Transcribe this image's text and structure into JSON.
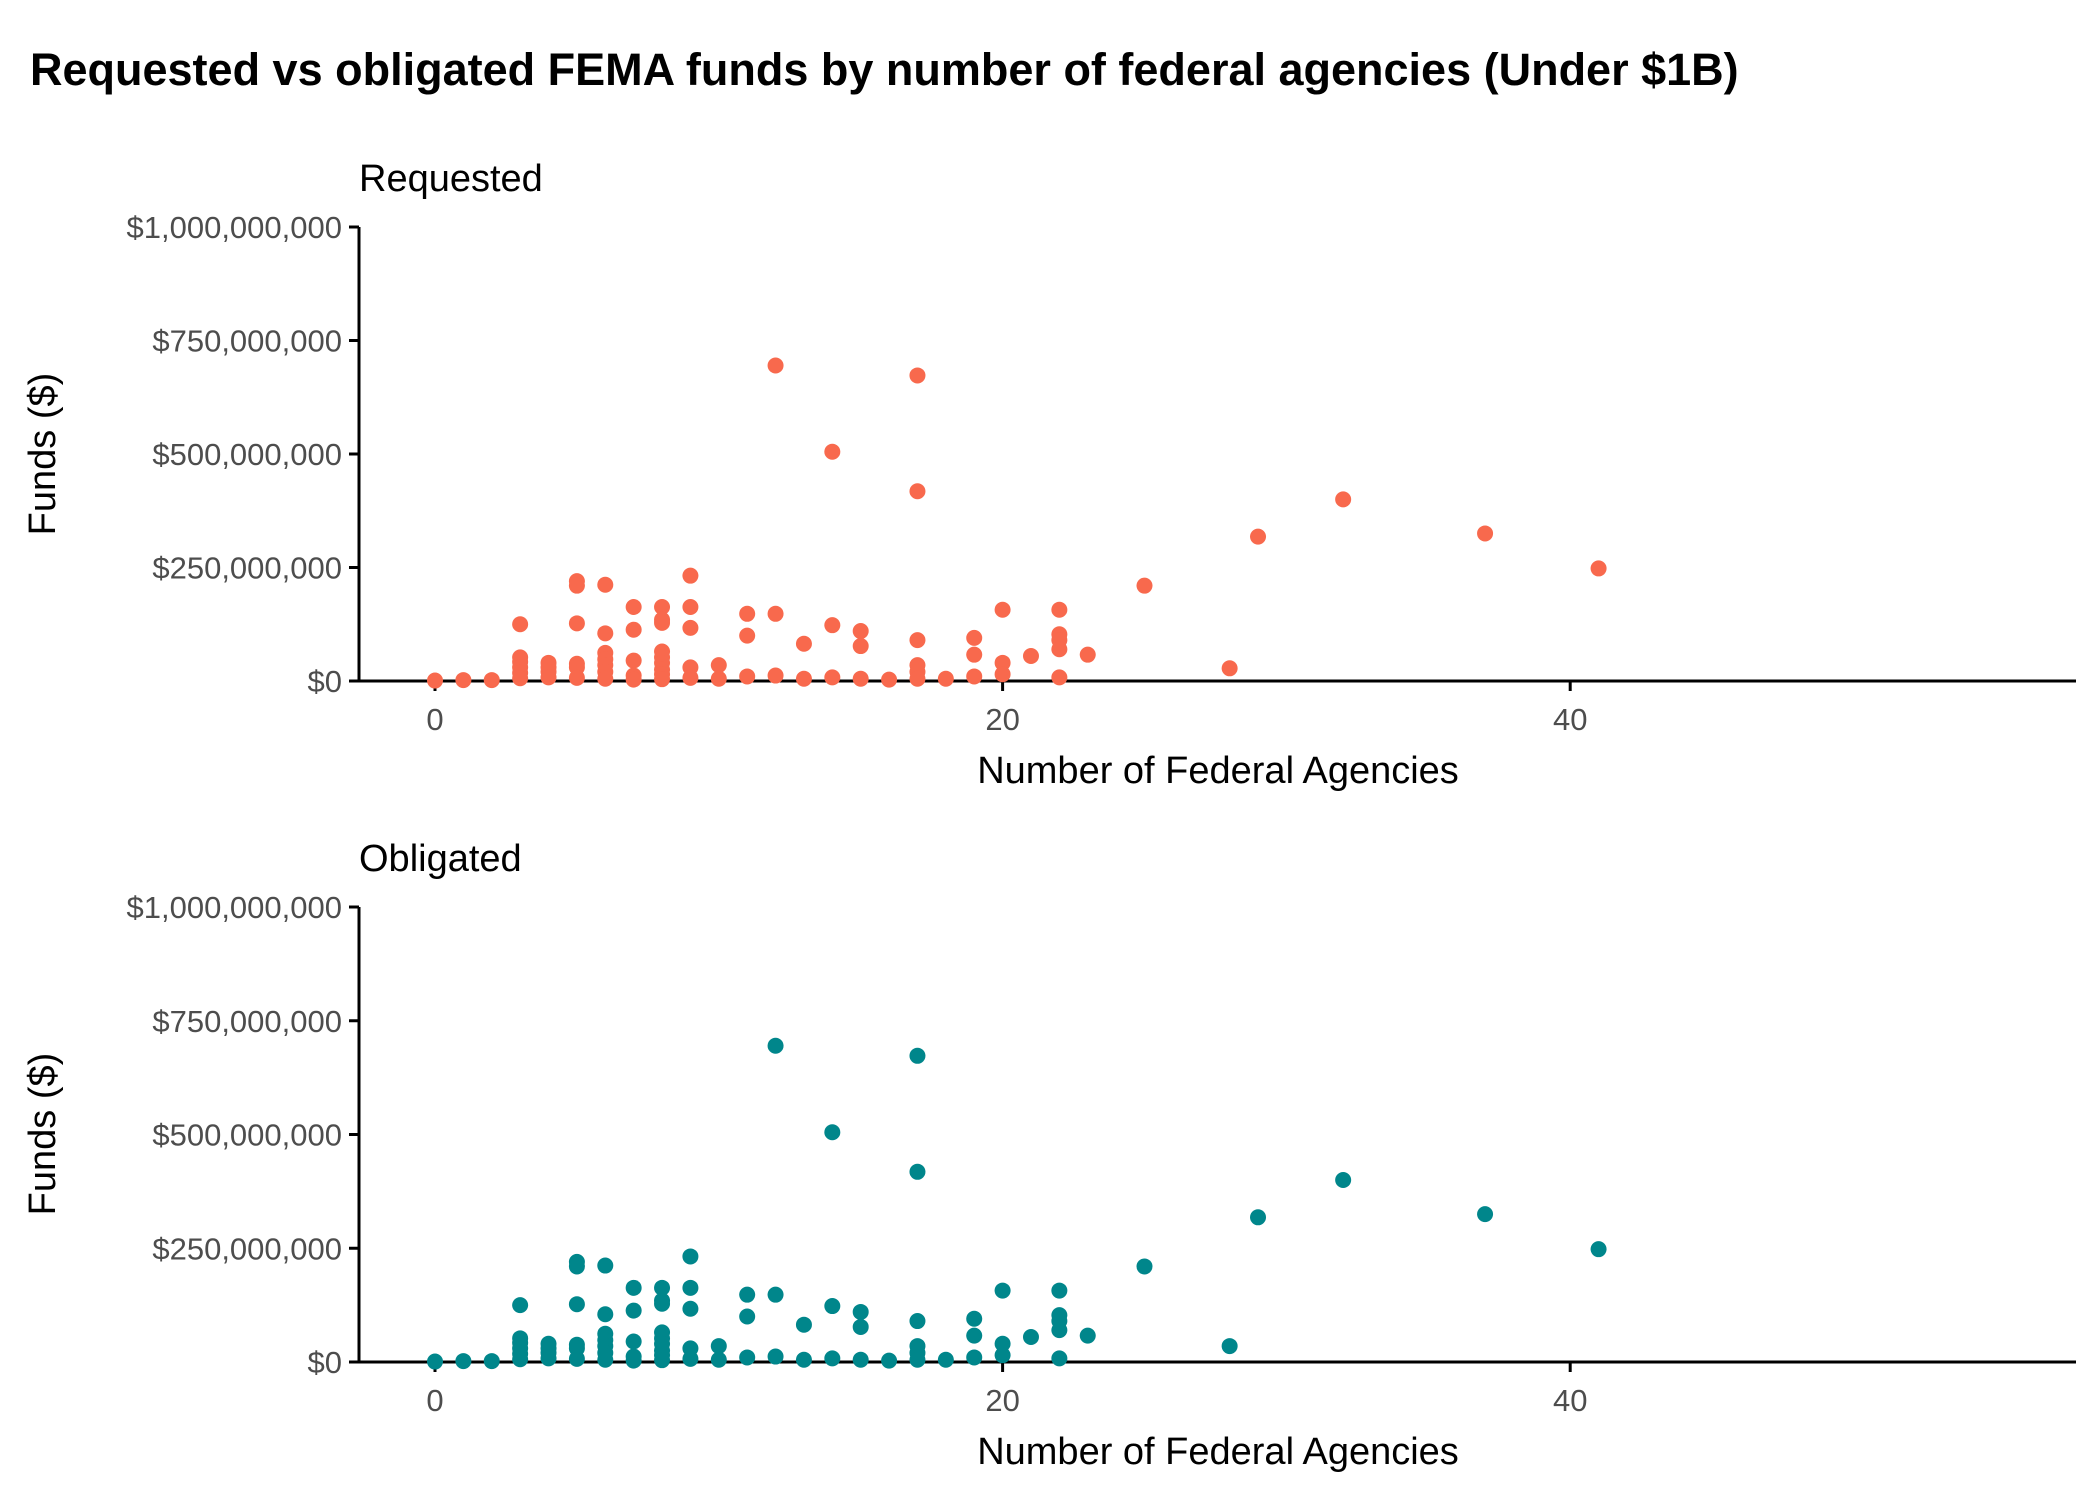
{
  "chart_data": {
    "type": "scatter",
    "title": "Requested vs obligated FEMA funds by number of federal agencies (Under $1B)",
    "xlabel": "Number of Federal Agencies",
    "ylabel": "Funds ($)",
    "xlim": [
      -2.7,
      57
    ],
    "ylim": [
      0,
      1000000000
    ],
    "x_ticks": [
      "0",
      "20",
      "40"
    ],
    "y_ticks": [
      "$0",
      "$250,000,000",
      "$500,000,000",
      "$750,000,000",
      "$1,000,000,000"
    ],
    "grid": false,
    "panels": [
      {
        "name": "Requested",
        "color": "#f8694d",
        "points": [
          [
            0,
            1000000
          ],
          [
            1,
            2000000
          ],
          [
            2,
            2000000
          ],
          [
            3,
            125000000
          ],
          [
            3,
            52000000
          ],
          [
            3,
            42000000
          ],
          [
            3,
            30000000
          ],
          [
            3,
            18000000
          ],
          [
            3,
            6000000
          ],
          [
            4,
            40000000
          ],
          [
            4,
            30000000
          ],
          [
            4,
            20000000
          ],
          [
            4,
            8000000
          ],
          [
            5,
            220000000
          ],
          [
            5,
            210000000
          ],
          [
            5,
            127000000
          ],
          [
            5,
            38000000
          ],
          [
            5,
            30000000
          ],
          [
            5,
            7000000
          ],
          [
            6,
            212000000
          ],
          [
            6,
            105000000
          ],
          [
            6,
            62000000
          ],
          [
            6,
            48000000
          ],
          [
            6,
            35000000
          ],
          [
            6,
            20000000
          ],
          [
            6,
            5000000
          ],
          [
            7,
            163000000
          ],
          [
            7,
            113000000
          ],
          [
            7,
            45000000
          ],
          [
            7,
            12000000
          ],
          [
            7,
            3000000
          ],
          [
            8,
            163000000
          ],
          [
            8,
            135000000
          ],
          [
            8,
            128000000
          ],
          [
            8,
            65000000
          ],
          [
            8,
            52000000
          ],
          [
            8,
            40000000
          ],
          [
            8,
            25000000
          ],
          [
            8,
            15000000
          ],
          [
            8,
            4000000
          ],
          [
            9,
            232000000
          ],
          [
            9,
            163000000
          ],
          [
            9,
            117000000
          ],
          [
            9,
            30000000
          ],
          [
            9,
            7000000
          ],
          [
            10,
            35000000
          ],
          [
            10,
            5000000
          ],
          [
            11,
            148000000
          ],
          [
            11,
            100000000
          ],
          [
            11,
            10000000
          ],
          [
            12,
            695000000
          ],
          [
            12,
            148000000
          ],
          [
            12,
            12000000
          ],
          [
            13,
            82000000
          ],
          [
            13,
            5000000
          ],
          [
            14,
            505000000
          ],
          [
            14,
            123000000
          ],
          [
            14,
            8000000
          ],
          [
            15,
            110000000
          ],
          [
            15,
            77000000
          ],
          [
            15,
            5000000
          ],
          [
            16,
            3000000
          ],
          [
            17,
            673000000
          ],
          [
            17,
            418000000
          ],
          [
            17,
            90000000
          ],
          [
            17,
            35000000
          ],
          [
            17,
            20000000
          ],
          [
            17,
            5000000
          ],
          [
            18,
            5000000
          ],
          [
            19,
            95000000
          ],
          [
            19,
            58000000
          ],
          [
            19,
            10000000
          ],
          [
            20,
            157000000
          ],
          [
            20,
            40000000
          ],
          [
            20,
            15000000
          ],
          [
            21,
            55000000
          ],
          [
            22,
            157000000
          ],
          [
            22,
            103000000
          ],
          [
            22,
            90000000
          ],
          [
            22,
            70000000
          ],
          [
            22,
            8000000
          ],
          [
            23,
            58000000
          ],
          [
            25,
            210000000
          ],
          [
            28,
            28000000
          ],
          [
            29,
            318000000
          ],
          [
            32,
            400000000
          ],
          [
            37,
            325000000
          ],
          [
            41,
            248000000
          ]
        ]
      },
      {
        "name": "Obligated",
        "color": "#00868b",
        "points": [
          [
            0,
            1000000
          ],
          [
            1,
            2000000
          ],
          [
            2,
            2000000
          ],
          [
            3,
            125000000
          ],
          [
            3,
            52000000
          ],
          [
            3,
            42000000
          ],
          [
            3,
            30000000
          ],
          [
            3,
            18000000
          ],
          [
            3,
            6000000
          ],
          [
            4,
            40000000
          ],
          [
            4,
            30000000
          ],
          [
            4,
            20000000
          ],
          [
            4,
            8000000
          ],
          [
            5,
            220000000
          ],
          [
            5,
            210000000
          ],
          [
            5,
            127000000
          ],
          [
            5,
            38000000
          ],
          [
            5,
            30000000
          ],
          [
            5,
            7000000
          ],
          [
            6,
            212000000
          ],
          [
            6,
            105000000
          ],
          [
            6,
            62000000
          ],
          [
            6,
            48000000
          ],
          [
            6,
            35000000
          ],
          [
            6,
            20000000
          ],
          [
            6,
            5000000
          ],
          [
            7,
            163000000
          ],
          [
            7,
            113000000
          ],
          [
            7,
            45000000
          ],
          [
            7,
            12000000
          ],
          [
            7,
            3000000
          ],
          [
            8,
            163000000
          ],
          [
            8,
            135000000
          ],
          [
            8,
            128000000
          ],
          [
            8,
            65000000
          ],
          [
            8,
            52000000
          ],
          [
            8,
            40000000
          ],
          [
            8,
            25000000
          ],
          [
            8,
            15000000
          ],
          [
            8,
            4000000
          ],
          [
            9,
            232000000
          ],
          [
            9,
            163000000
          ],
          [
            9,
            117000000
          ],
          [
            9,
            30000000
          ],
          [
            9,
            7000000
          ],
          [
            10,
            35000000
          ],
          [
            10,
            5000000
          ],
          [
            11,
            148000000
          ],
          [
            11,
            100000000
          ],
          [
            11,
            10000000
          ],
          [
            12,
            695000000
          ],
          [
            12,
            148000000
          ],
          [
            12,
            12000000
          ],
          [
            13,
            82000000
          ],
          [
            13,
            5000000
          ],
          [
            14,
            505000000
          ],
          [
            14,
            123000000
          ],
          [
            14,
            8000000
          ],
          [
            15,
            110000000
          ],
          [
            15,
            77000000
          ],
          [
            15,
            5000000
          ],
          [
            16,
            3000000
          ],
          [
            17,
            673000000
          ],
          [
            17,
            418000000
          ],
          [
            17,
            90000000
          ],
          [
            17,
            35000000
          ],
          [
            17,
            20000000
          ],
          [
            17,
            5000000
          ],
          [
            18,
            5000000
          ],
          [
            19,
            95000000
          ],
          [
            19,
            58000000
          ],
          [
            19,
            10000000
          ],
          [
            20,
            157000000
          ],
          [
            20,
            40000000
          ],
          [
            20,
            15000000
          ],
          [
            21,
            55000000
          ],
          [
            22,
            157000000
          ],
          [
            22,
            103000000
          ],
          [
            22,
            90000000
          ],
          [
            22,
            70000000
          ],
          [
            22,
            8000000
          ],
          [
            23,
            58000000
          ],
          [
            25,
            210000000
          ],
          [
            28,
            35000000
          ],
          [
            29,
            318000000
          ],
          [
            32,
            400000000
          ],
          [
            37,
            325000000
          ],
          [
            41,
            248000000
          ]
        ]
      }
    ]
  }
}
